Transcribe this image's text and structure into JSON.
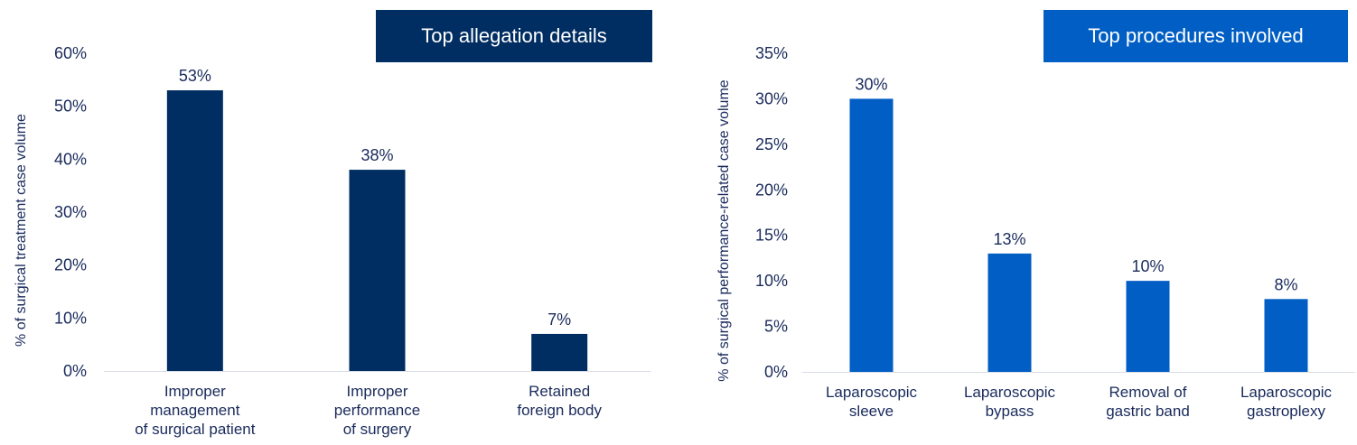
{
  "chart_data": [
    {
      "type": "bar",
      "title": "Top allegation details",
      "ylabel": "% of surgical treatment case volume",
      "xlabel": "",
      "categories": [
        [
          "Improper",
          "management",
          "of surgical patient"
        ],
        [
          "Improper",
          "performance",
          "of surgery"
        ],
        [
          "Retained",
          "foreign body"
        ]
      ],
      "values": [
        53,
        38,
        7
      ],
      "data_labels": [
        "53%",
        "38%",
        "7%"
      ],
      "ylim": [
        0,
        60
      ],
      "yticks": [
        "0%",
        "10%",
        "20%",
        "30%",
        "40%",
        "50%",
        "60%"
      ],
      "grid": false,
      "bar_color": "#002D62",
      "title_color": "#002D62"
    },
    {
      "type": "bar",
      "title": "Top procedures involved",
      "ylabel": "% of surgical performance-related case volume",
      "xlabel": "",
      "categories": [
        [
          "Laparoscopic",
          "sleeve"
        ],
        [
          "Laparoscopic",
          "bypass"
        ],
        [
          "Removal of",
          "gastric band"
        ],
        [
          "Laparoscopic",
          "gastroplexy"
        ]
      ],
      "values": [
        30,
        13,
        10,
        8
      ],
      "data_labels": [
        "30%",
        "13%",
        "10%",
        "8%"
      ],
      "ylim": [
        0,
        35
      ],
      "yticks": [
        "0%",
        "5%",
        "10%",
        "15%",
        "20%",
        "25%",
        "30%",
        "35%"
      ],
      "grid": false,
      "bar_color": "#005EC4",
      "title_color": "#005EC4"
    }
  ]
}
